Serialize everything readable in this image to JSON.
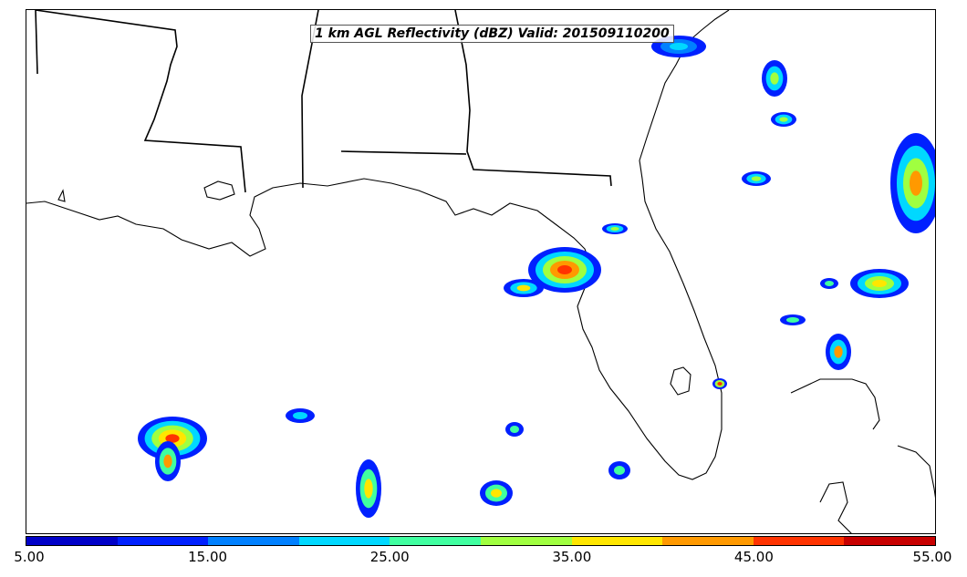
{
  "title": "1 km AGL Reflectivity (dBZ) Valid: 201509110200",
  "colorbar": {
    "colors": [
      "#0000c8",
      "#0020ff",
      "#0080ff",
      "#00d8ff",
      "#40ffa0",
      "#a0ff40",
      "#ffe600",
      "#ff9900",
      "#ff3300",
      "#c80000"
    ],
    "tick_labels": [
      "5.00",
      "15.00",
      "25.00",
      "35.00",
      "45.00",
      "55.00"
    ],
    "range": [
      5,
      55
    ]
  }
}
